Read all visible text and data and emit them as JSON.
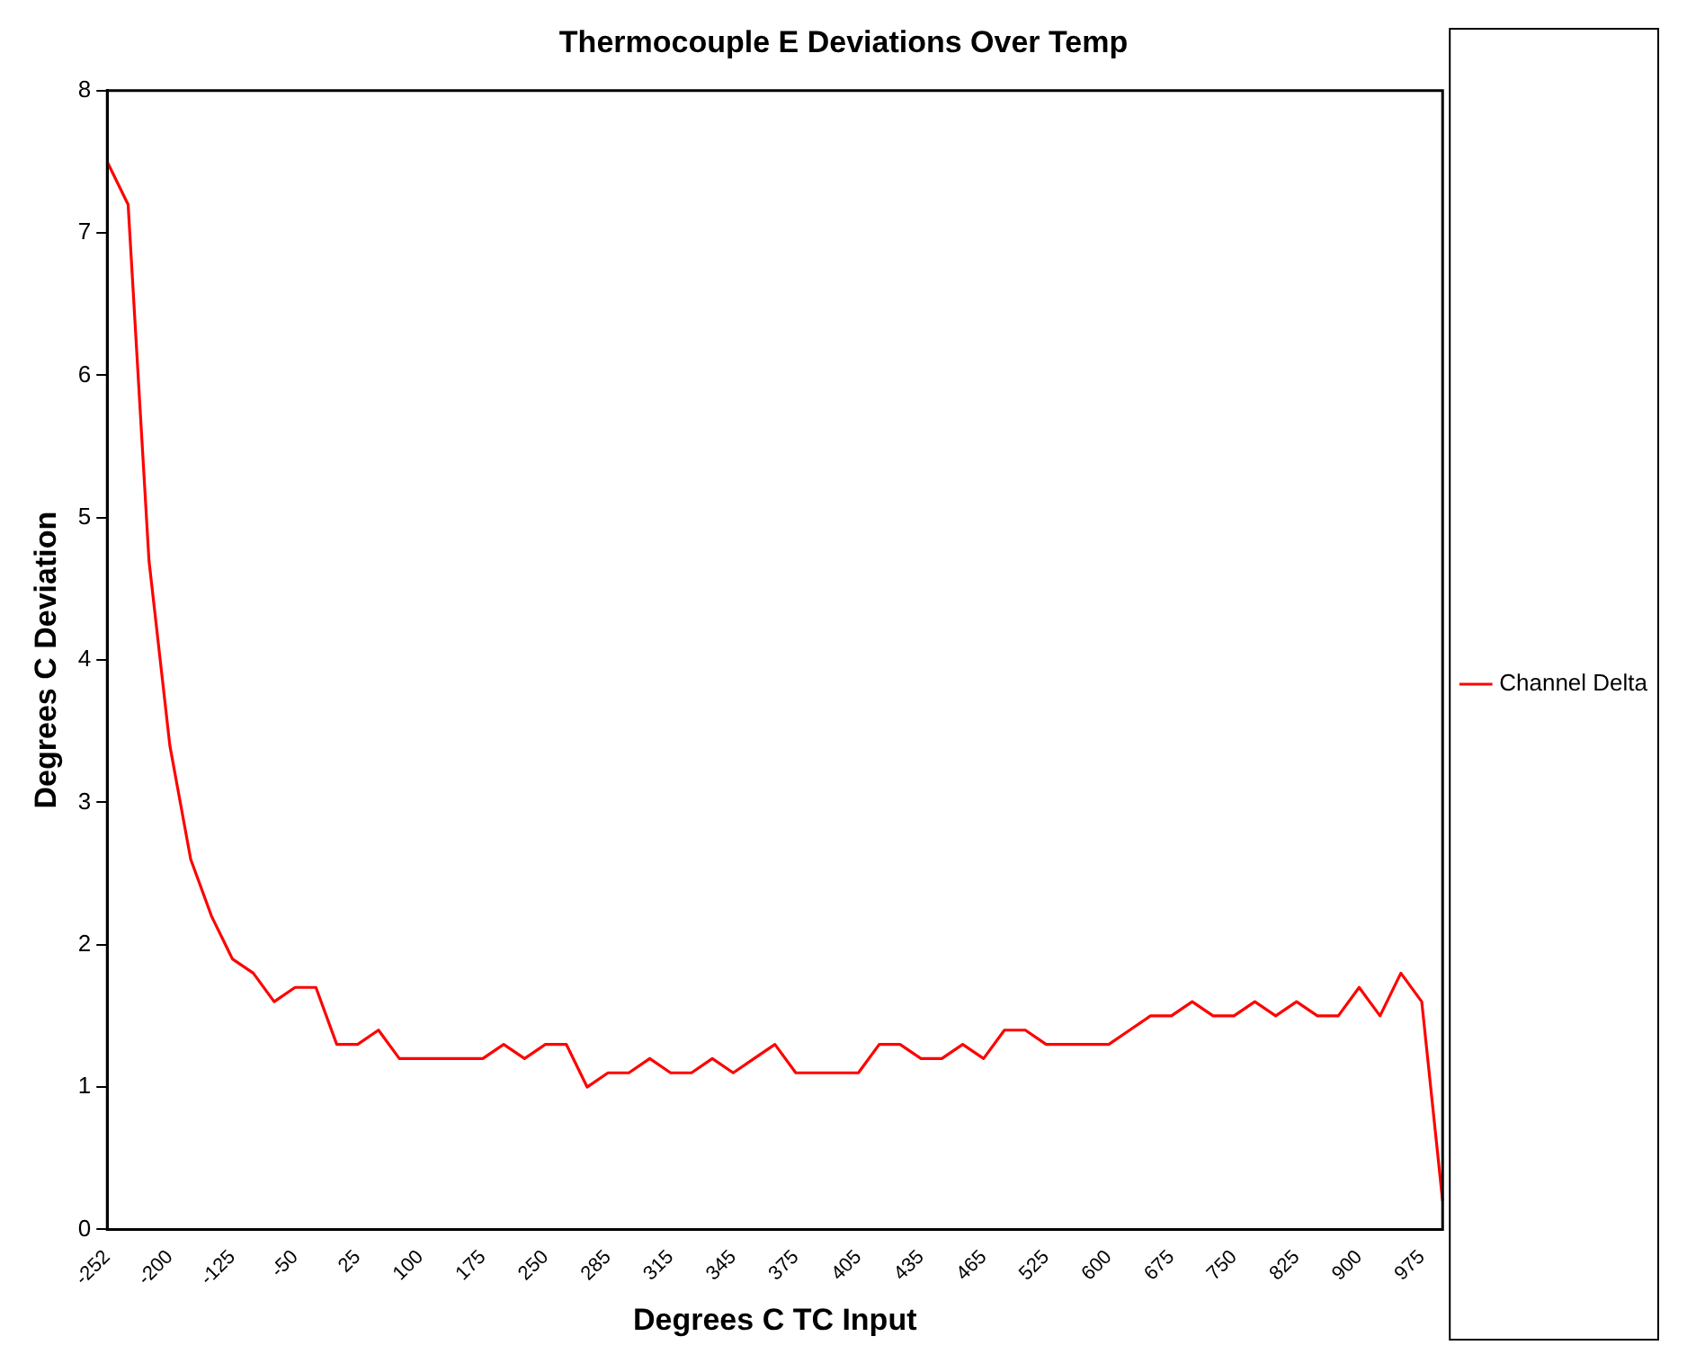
{
  "chart_data": {
    "type": "line",
    "title": "Thermocouple E Deviations Over Temp",
    "xlabel": "Degrees C TC Input",
    "ylabel": "Degrees C Deviation",
    "categories": [
      "-252",
      null,
      null,
      "-200",
      null,
      null,
      "-125",
      null,
      null,
      "-50",
      null,
      null,
      "25",
      null,
      null,
      "100",
      null,
      null,
      "175",
      null,
      null,
      "250",
      null,
      null,
      "285",
      null,
      null,
      "315",
      null,
      null,
      "345",
      null,
      null,
      "375",
      null,
      null,
      "405",
      null,
      null,
      "435",
      null,
      null,
      "465",
      null,
      null,
      "525",
      null,
      null,
      "600",
      null,
      null,
      "675",
      null,
      null,
      "750",
      null,
      null,
      "825",
      null,
      null,
      "900",
      null,
      null,
      "975",
      null
    ],
    "series": [
      {
        "name": "Channel Delta",
        "color": "#ff0000",
        "values": [
          7.5,
          7.2,
          4.7,
          3.4,
          2.6,
          2.2,
          1.9,
          1.8,
          1.6,
          1.7,
          1.7,
          1.3,
          1.3,
          1.4,
          1.2,
          1.2,
          1.2,
          1.2,
          1.2,
          1.3,
          1.2,
          1.3,
          1.3,
          1.0,
          1.1,
          1.1,
          1.2,
          1.1,
          1.1,
          1.2,
          1.1,
          1.2,
          1.3,
          1.1,
          1.1,
          1.1,
          1.1,
          1.3,
          1.3,
          1.2,
          1.2,
          1.3,
          1.2,
          1.4,
          1.4,
          1.3,
          1.3,
          1.3,
          1.3,
          1.4,
          1.5,
          1.5,
          1.6,
          1.5,
          1.5,
          1.6,
          1.5,
          1.6,
          1.5,
          1.5,
          1.7,
          1.5,
          1.8,
          1.6,
          0.2
        ]
      }
    ],
    "ylim": [
      0,
      8
    ],
    "yticks": [
      0,
      1,
      2,
      3,
      4,
      5,
      6,
      7,
      8
    ],
    "grid": false,
    "legend": "right",
    "marker": "none",
    "line_style": "solid"
  }
}
